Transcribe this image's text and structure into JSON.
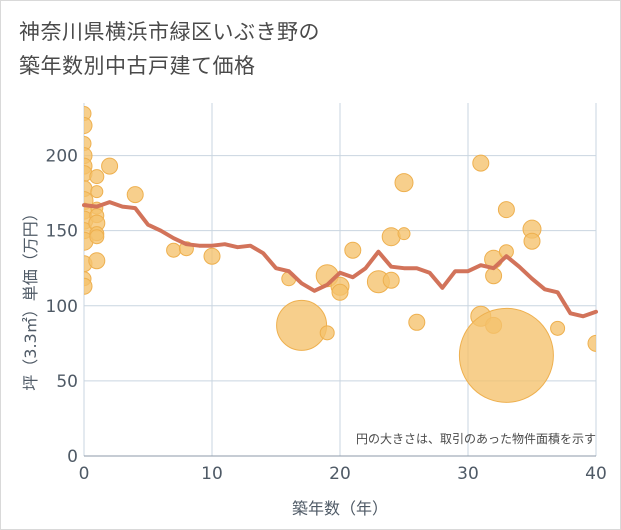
{
  "title_lines": [
    "神奈川県横浜市緑区いぶき野の",
    "築年数別中古戸建て価格"
  ],
  "colors": {
    "bubble": "#f5c16c",
    "bubble_stroke": "#eeb04f",
    "line": "#d2735a",
    "grid": "#c9d5e0",
    "text": "#4f5a66"
  },
  "chart_data": {
    "type": "scatter",
    "title": "神奈川県横浜市緑区いぶき野の築年数別中古戸建て価格",
    "xlabel": "築年数（年）",
    "ylabel": "坪（3.3㎡）単価（万円）",
    "xlim": [
      0,
      40
    ],
    "ylim": [
      0,
      235
    ],
    "xticks": [
      0,
      10,
      20,
      30,
      40
    ],
    "yticks": [
      0,
      50,
      100,
      150,
      200
    ],
    "grid": true,
    "note": "円の大きさは、取引のあった物件面積を示す",
    "bubbles": [
      {
        "x": 0,
        "y": 228,
        "s": 7
      },
      {
        "x": 0,
        "y": 220,
        "s": 8
      },
      {
        "x": 0,
        "y": 208,
        "s": 7
      },
      {
        "x": 0,
        "y": 200,
        "s": 8
      },
      {
        "x": 0,
        "y": 193,
        "s": 8
      },
      {
        "x": 0,
        "y": 188,
        "s": 8
      },
      {
        "x": 0,
        "y": 178,
        "s": 8
      },
      {
        "x": 0,
        "y": 170,
        "s": 9
      },
      {
        "x": 0,
        "y": 163,
        "s": 8
      },
      {
        "x": 0,
        "y": 157,
        "s": 9
      },
      {
        "x": 0,
        "y": 150,
        "s": 8
      },
      {
        "x": 0,
        "y": 143,
        "s": 9
      },
      {
        "x": 0,
        "y": 128,
        "s": 8
      },
      {
        "x": 0,
        "y": 118,
        "s": 7
      },
      {
        "x": 0,
        "y": 113,
        "s": 8
      },
      {
        "x": 1,
        "y": 186,
        "s": 7
      },
      {
        "x": 1,
        "y": 176,
        "s": 6
      },
      {
        "x": 1,
        "y": 165,
        "s": 6
      },
      {
        "x": 1,
        "y": 160,
        "s": 7
      },
      {
        "x": 1,
        "y": 155,
        "s": 8
      },
      {
        "x": 1,
        "y": 148,
        "s": 7
      },
      {
        "x": 1,
        "y": 146,
        "s": 7
      },
      {
        "x": 1,
        "y": 130,
        "s": 8
      },
      {
        "x": 2,
        "y": 193,
        "s": 8
      },
      {
        "x": 4,
        "y": 174,
        "s": 8
      },
      {
        "x": 7,
        "y": 137,
        "s": 7
      },
      {
        "x": 8,
        "y": 138,
        "s": 7
      },
      {
        "x": 10,
        "y": 133,
        "s": 8
      },
      {
        "x": 16,
        "y": 118,
        "s": 7
      },
      {
        "x": 17,
        "y": 87,
        "s": 25
      },
      {
        "x": 19,
        "y": 120,
        "s": 11
      },
      {
        "x": 19,
        "y": 82,
        "s": 7
      },
      {
        "x": 20,
        "y": 113,
        "s": 9
      },
      {
        "x": 20,
        "y": 109,
        "s": 8
      },
      {
        "x": 21,
        "y": 137,
        "s": 8
      },
      {
        "x": 23,
        "y": 116,
        "s": 11
      },
      {
        "x": 24,
        "y": 146,
        "s": 9
      },
      {
        "x": 24,
        "y": 117,
        "s": 8
      },
      {
        "x": 25,
        "y": 182,
        "s": 9
      },
      {
        "x": 25,
        "y": 148,
        "s": 6
      },
      {
        "x": 26,
        "y": 89,
        "s": 8
      },
      {
        "x": 31,
        "y": 195,
        "s": 8
      },
      {
        "x": 31,
        "y": 93,
        "s": 10
      },
      {
        "x": 32,
        "y": 131,
        "s": 9
      },
      {
        "x": 32,
        "y": 120,
        "s": 8
      },
      {
        "x": 32,
        "y": 87,
        "s": 8
      },
      {
        "x": 33,
        "y": 164,
        "s": 8
      },
      {
        "x": 33,
        "y": 136,
        "s": 7
      },
      {
        "x": 33,
        "y": 67,
        "s": 47
      },
      {
        "x": 35,
        "y": 151,
        "s": 9
      },
      {
        "x": 35,
        "y": 143,
        "s": 8
      },
      {
        "x": 37,
        "y": 85,
        "s": 7
      },
      {
        "x": 40,
        "y": 75,
        "s": 8
      }
    ],
    "trend_line": {
      "x": [
        0,
        1,
        2,
        3,
        4,
        5,
        6,
        7,
        8,
        9,
        10,
        11,
        12,
        13,
        14,
        15,
        16,
        17,
        18,
        19,
        20,
        21,
        22,
        23,
        24,
        25,
        26,
        27,
        28,
        29,
        30,
        31,
        32,
        33,
        34,
        35,
        36,
        37,
        38,
        39,
        40
      ],
      "y": [
        167,
        166,
        169,
        166,
        165,
        154,
        150,
        145,
        141,
        140,
        140,
        141,
        139,
        140,
        135,
        125,
        123,
        115,
        110,
        114,
        122,
        119,
        125,
        136,
        126,
        125,
        125,
        122,
        112,
        123,
        123,
        127,
        125,
        133,
        126,
        118,
        111,
        109,
        95,
        93,
        96
      ]
    }
  }
}
